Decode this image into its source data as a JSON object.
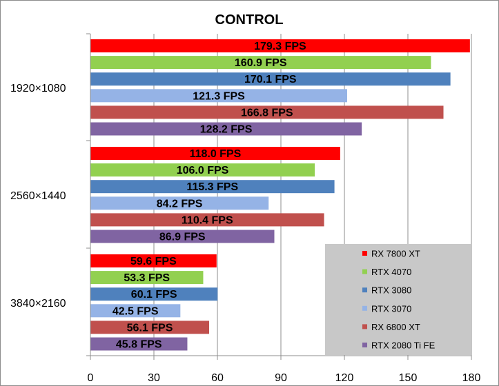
{
  "chart_data": {
    "type": "bar",
    "orientation": "horizontal",
    "title": "CONTROL",
    "xlim": [
      0,
      180
    ],
    "x_ticks": [
      "0",
      "30",
      "60",
      "90",
      "120",
      "150",
      "180"
    ],
    "grid": "vertical major gridlines",
    "legend_position": "bottom-right",
    "categories": [
      "1920×1080",
      "2560×1440",
      "3840×2160"
    ],
    "series": [
      {
        "name": "RX 7800 XT",
        "color": "#ff0000",
        "values": [
          179.3,
          118.0,
          59.6
        ],
        "labels": [
          "179.3 FPS",
          "118.0 FPS",
          "59.6 FPS"
        ]
      },
      {
        "name": "RTX 4070",
        "color": "#92d050",
        "values": [
          160.9,
          106.0,
          53.3
        ],
        "labels": [
          "160.9 FPS",
          "106.0 FPS",
          "53.3 FPS"
        ]
      },
      {
        "name": "RTX 3080",
        "color": "#4f81bd",
        "values": [
          170.1,
          115.3,
          60.1
        ],
        "labels": [
          "170.1 FPS",
          "115.3 FPS",
          "60.1 FPS"
        ]
      },
      {
        "name": "RTX 3070",
        "color": "#95b3e6",
        "values": [
          121.3,
          84.2,
          42.5
        ],
        "labels": [
          "121.3 FPS",
          "84.2 FPS",
          "42.5 FPS"
        ]
      },
      {
        "name": "RX 6800 XT",
        "color": "#c0504d",
        "values": [
          166.8,
          110.4,
          56.1
        ],
        "labels": [
          "166.8 FPS",
          "110.4 FPS",
          "56.1 FPS"
        ]
      },
      {
        "name": "RTX 2080 Ti FE",
        "color": "#8064a2",
        "values": [
          128.2,
          86.9,
          45.8
        ],
        "labels": [
          "128.2 FPS",
          "86.9 FPS",
          "45.8 FPS"
        ]
      }
    ],
    "legend_background": "#c8c8c8"
  }
}
